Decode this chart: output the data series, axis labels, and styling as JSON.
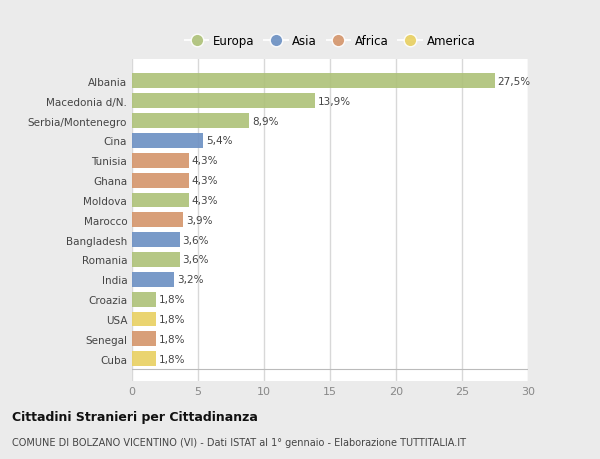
{
  "categories": [
    "Albania",
    "Macedonia d/N.",
    "Serbia/Montenegro",
    "Cina",
    "Tunisia",
    "Ghana",
    "Moldova",
    "Marocco",
    "Bangladesh",
    "Romania",
    "India",
    "Croazia",
    "USA",
    "Senegal",
    "Cuba"
  ],
  "values": [
    27.5,
    13.9,
    8.9,
    5.4,
    4.3,
    4.3,
    4.3,
    3.9,
    3.6,
    3.6,
    3.2,
    1.8,
    1.8,
    1.8,
    1.8
  ],
  "labels": [
    "27,5%",
    "13,9%",
    "8,9%",
    "5,4%",
    "4,3%",
    "4,3%",
    "4,3%",
    "3,9%",
    "3,6%",
    "3,6%",
    "3,2%",
    "1,8%",
    "1,8%",
    "1,8%",
    "1,8%"
  ],
  "continent": [
    "Europa",
    "Europa",
    "Europa",
    "Asia",
    "Africa",
    "Africa",
    "Europa",
    "Africa",
    "Asia",
    "Europa",
    "Asia",
    "Europa",
    "America",
    "Africa",
    "America"
  ],
  "colors": {
    "Europa": "#adc178",
    "Asia": "#6b8fc2",
    "Africa": "#d4956a",
    "America": "#e8d060"
  },
  "bg_color": "#ebebeb",
  "plot_bg_color": "#ffffff",
  "grid_color": "#d8d8d8",
  "title": "Cittadini Stranieri per Cittadinanza",
  "subtitle": "COMUNE DI BOLZANO VICENTINO (VI) - Dati ISTAT al 1° gennaio - Elaborazione TUTTITALIA.IT",
  "xlim": [
    0,
    30
  ],
  "xticks": [
    0,
    5,
    10,
    15,
    20,
    25,
    30
  ],
  "legend_order": [
    "Europa",
    "Asia",
    "Africa",
    "America"
  ]
}
